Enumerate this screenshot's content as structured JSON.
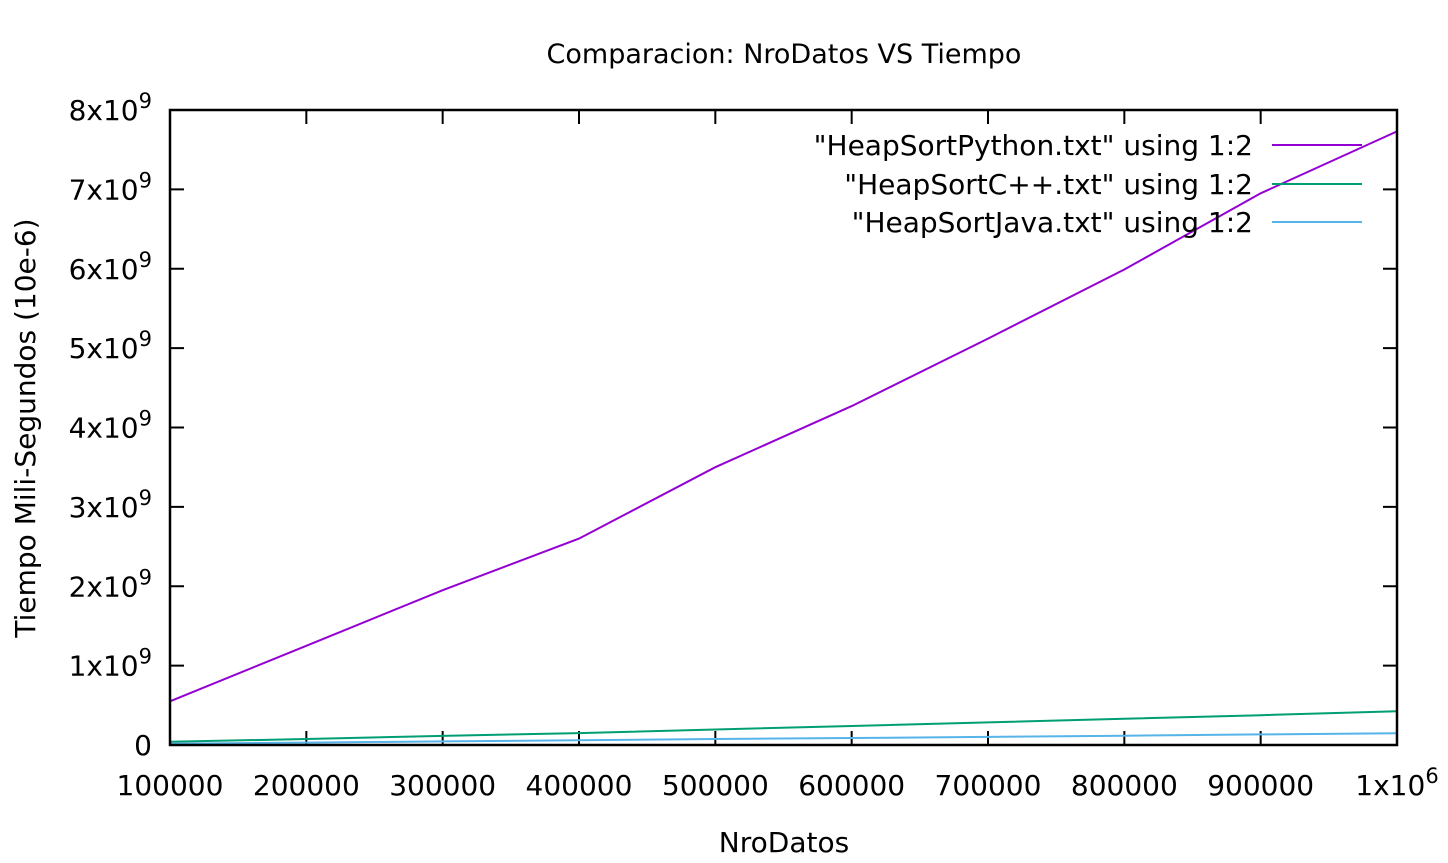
{
  "chart_data": {
    "type": "line",
    "title": "Comparacion: NroDatos VS Tiempo",
    "xlabel": "NroDatos",
    "ylabel": "Tiempo Mili-Segundos (10e-6)",
    "xlim": [
      100000,
      1000000
    ],
    "ylim": [
      0,
      8000000000
    ],
    "x_ticks": [
      100000,
      200000,
      300000,
      400000,
      500000,
      600000,
      700000,
      800000,
      900000,
      1000000
    ],
    "x_tick_labels": [
      {
        "base": "100000",
        "exp": ""
      },
      {
        "base": "200000",
        "exp": ""
      },
      {
        "base": "300000",
        "exp": ""
      },
      {
        "base": "400000",
        "exp": ""
      },
      {
        "base": "500000",
        "exp": ""
      },
      {
        "base": "600000",
        "exp": ""
      },
      {
        "base": "700000",
        "exp": ""
      },
      {
        "base": "800000",
        "exp": ""
      },
      {
        "base": "900000",
        "exp": ""
      },
      {
        "base": "1x10",
        "exp": "6"
      }
    ],
    "y_ticks": [
      0,
      1000000000,
      2000000000,
      3000000000,
      4000000000,
      5000000000,
      6000000000,
      7000000000,
      8000000000
    ],
    "y_tick_labels": [
      {
        "base": "0",
        "exp": ""
      },
      {
        "base": "1x10",
        "exp": "9"
      },
      {
        "base": "2x10",
        "exp": "9"
      },
      {
        "base": "3x10",
        "exp": "9"
      },
      {
        "base": "4x10",
        "exp": "9"
      },
      {
        "base": "5x10",
        "exp": "9"
      },
      {
        "base": "6x10",
        "exp": "9"
      },
      {
        "base": "7x10",
        "exp": "9"
      },
      {
        "base": "8x10",
        "exp": "9"
      }
    ],
    "x": [
      100000,
      200000,
      300000,
      400000,
      500000,
      600000,
      700000,
      800000,
      900000,
      1000000
    ],
    "series": [
      {
        "name": "\"HeapSortPython.txt\" using 1:2",
        "color": "#9400d3",
        "values": [
          550000000,
          1250000000,
          1950000000,
          2600000000,
          3500000000,
          4270000000,
          5120000000,
          5990000000,
          6950000000,
          7730000000
        ]
      },
      {
        "name": "\"HeapSortC++.txt\" using 1:2",
        "color": "#009e73",
        "values": [
          40000000,
          75000000,
          115000000,
          150000000,
          195000000,
          240000000,
          285000000,
          330000000,
          375000000,
          425000000
        ]
      },
      {
        "name": "\"HeapSortJava.txt\" using 1:2",
        "color": "#56b4e9",
        "values": [
          15000000,
          30000000,
          45000000,
          60000000,
          75000000,
          88000000,
          102000000,
          117000000,
          133000000,
          148000000
        ]
      }
    ],
    "legend_position": "top-right",
    "grid": false
  }
}
